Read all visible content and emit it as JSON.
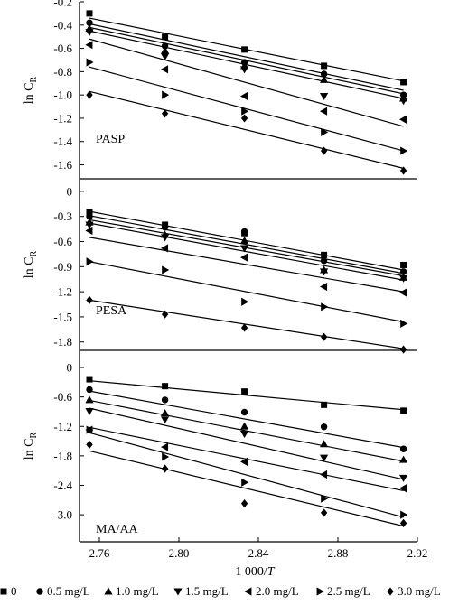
{
  "chart_data": [
    {
      "type": "scatter",
      "panel_label": "PASP",
      "ylabel": "ln C",
      "ylabel_sub": "R",
      "xlim": [
        2.75,
        2.92
      ],
      "ylim": [
        -1.72,
        -0.2
      ],
      "yticks": [
        "-0.2",
        "-0.4",
        "-0.6",
        "-0.8",
        "-1.0",
        "-1.2",
        "-1.4",
        "-1.6"
      ],
      "ytick_values": [
        -0.2,
        -0.4,
        -0.6,
        -0.8,
        -1.0,
        -1.2,
        -1.4,
        -1.6
      ],
      "x": [
        2.755,
        2.793,
        2.833,
        2.873,
        2.913
      ],
      "series": [
        {
          "values": [
            -0.3,
            -0.5,
            -0.61,
            -0.75,
            -0.89
          ],
          "fit": [
            -0.34,
            -0.88
          ]
        },
        {
          "values": [
            -0.38,
            -0.58,
            -0.72,
            -0.82,
            -1.0
          ],
          "fit": [
            -0.39,
            -0.96
          ]
        },
        {
          "values": [
            -0.43,
            -0.62,
            -0.75,
            -0.87,
            -1.03
          ],
          "fit": [
            -0.42,
            -0.99
          ]
        },
        {
          "values": [
            -0.46,
            -0.67,
            -0.78,
            -1.01,
            -1.05
          ],
          "fit": [
            -0.45,
            -1.03
          ]
        },
        {
          "values": [
            -0.57,
            -0.78,
            -1.01,
            -1.14,
            -1.21
          ],
          "fit": [
            -0.52,
            -1.27
          ]
        },
        {
          "values": [
            -0.72,
            -1.0,
            -1.14,
            -1.32,
            -1.48
          ],
          "fit": [
            -0.76,
            -1.48
          ]
        },
        {
          "values": [
            -1.0,
            -1.16,
            -1.2,
            -1.48,
            -1.65
          ],
          "fit": [
            -0.97,
            -1.63
          ]
        }
      ]
    },
    {
      "type": "scatter",
      "panel_label": "PESA",
      "ylabel": "ln C",
      "ylabel_sub": "R",
      "xlim": [
        2.75,
        2.92
      ],
      "ylim": [
        -1.9,
        0.15
      ],
      "yticks": [
        "0",
        "-0.3",
        "-0.6",
        "-0.9",
        "-1.2",
        "-1.5",
        "-1.8"
      ],
      "ytick_values": [
        0,
        -0.3,
        -0.6,
        -0.9,
        -1.2,
        -1.5,
        -1.8
      ],
      "x": [
        2.755,
        2.793,
        2.833,
        2.873,
        2.913
      ],
      "series": [
        {
          "values": [
            -0.25,
            -0.4,
            -0.5,
            -0.76,
            -0.88
          ],
          "fit": [
            -0.24,
            -0.94
          ]
        },
        {
          "values": [
            -0.3,
            -0.43,
            -0.48,
            -0.83,
            -0.96
          ],
          "fit": [
            -0.29,
            -0.98
          ]
        },
        {
          "values": [
            -0.37,
            -0.52,
            -0.59,
            -0.94,
            -1.03
          ],
          "fit": [
            -0.34,
            -1.01
          ]
        },
        {
          "values": [
            -0.4,
            -0.55,
            -0.68,
            -0.96,
            -1.04
          ],
          "fit": [
            -0.38,
            -1.06
          ]
        },
        {
          "values": [
            -0.47,
            -0.68,
            -0.79,
            -1.14,
            -1.21
          ],
          "fit": [
            -0.55,
            -1.2
          ]
        },
        {
          "values": [
            -0.84,
            -0.94,
            -1.32,
            -1.38,
            -1.58
          ],
          "fit": [
            -0.84,
            -1.56
          ]
        },
        {
          "values": [
            -1.3,
            -1.47,
            -1.63,
            -1.74,
            -1.89
          ],
          "fit": [
            -1.3,
            -1.88
          ]
        }
      ]
    },
    {
      "type": "scatter",
      "panel_label": "MA/AA",
      "ylabel": "ln C",
      "ylabel_sub": "R",
      "xlabel": "1 000/T",
      "xlim": [
        2.75,
        2.92
      ],
      "ylim": [
        -3.55,
        0.35
      ],
      "yticks": [
        "0",
        "-0.6",
        "-1.2",
        "-1.8",
        "-2.4",
        "-3.0"
      ],
      "ytick_values": [
        0,
        -0.6,
        -1.2,
        -1.8,
        -2.4,
        -3.0
      ],
      "xticks": [
        "2.76",
        "2.80",
        "2.84",
        "2.88",
        "2.92"
      ],
      "xtick_values": [
        2.76,
        2.8,
        2.84,
        2.88,
        2.92
      ],
      "x": [
        2.755,
        2.793,
        2.833,
        2.873,
        2.913
      ],
      "series": [
        {
          "values": [
            -0.24,
            -0.38,
            -0.49,
            -0.76,
            -0.88
          ],
          "fit": [
            -0.27,
            -0.86
          ]
        },
        {
          "values": [
            -0.45,
            -0.66,
            -0.91,
            -1.21,
            -1.66
          ],
          "fit": [
            -0.48,
            -1.63
          ]
        },
        {
          "values": [
            -0.66,
            -0.93,
            -1.2,
            -1.56,
            -1.88
          ],
          "fit": [
            -0.67,
            -1.91
          ]
        },
        {
          "values": [
            -0.89,
            -1.06,
            -1.35,
            -1.84,
            -2.25
          ],
          "fit": [
            -0.83,
            -2.28
          ]
        },
        {
          "values": [
            -1.27,
            -1.62,
            -1.92,
            -2.18,
            -2.46
          ],
          "fit": [
            -1.22,
            -2.51
          ]
        },
        {
          "values": [
            -1.27,
            -1.82,
            -2.34,
            -2.67,
            -3.0
          ],
          "fit": [
            -1.33,
            -3.05
          ]
        },
        {
          "values": [
            -1.57,
            -2.06,
            -2.77,
            -2.96,
            -3.17
          ],
          "fit": [
            -1.7,
            -3.23
          ]
        }
      ]
    }
  ],
  "legend": {
    "markers": [
      "square",
      "circle",
      "triangle-up",
      "triangle-down",
      "triangle-left",
      "triangle-right",
      "diamond"
    ],
    "labels": [
      "0",
      "0.5 mg/L",
      "1.0 mg/L",
      "1.5 mg/L",
      "2.0 mg/L",
      "2.5 mg/L",
      "3.0 mg/L"
    ]
  },
  "colors": {
    "ink": "#000000",
    "background": "#ffffff"
  }
}
